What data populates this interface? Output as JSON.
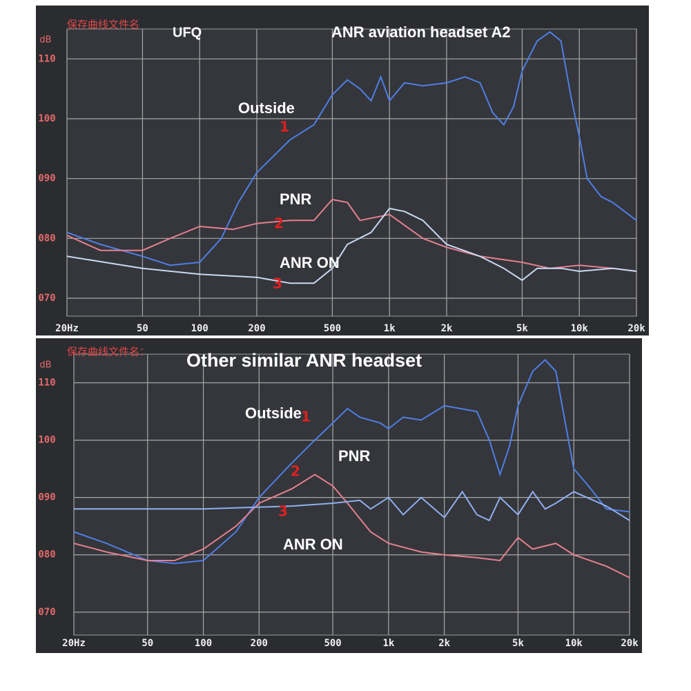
{
  "chart_data": [
    {
      "type": "line",
      "header": "保存曲线文件名",
      "file_name": "UFQ",
      "title": "ANR aviation headset A2",
      "y_label": "dB",
      "x_scale": "log",
      "grid": true,
      "xlim": [
        20,
        20000
      ],
      "xticks": [
        {
          "value": 20,
          "label": "20Hz"
        },
        50,
        100,
        200,
        500,
        {
          "value": 1000,
          "label": "1k"
        },
        {
          "value": 2000,
          "label": "2k"
        },
        {
          "value": 5000,
          "label": "5k"
        },
        {
          "value": 10000,
          "label": "10k"
        },
        {
          "value": 20000,
          "label": "20k"
        }
      ],
      "ylim": [
        67,
        115
      ],
      "yticks": [
        110,
        100,
        {
          "value": 90,
          "label": "090"
        },
        {
          "value": 80,
          "label": "080"
        },
        {
          "value": 70,
          "label": "070"
        }
      ],
      "series": [
        {
          "name": "Outside",
          "marker": "1",
          "color": "#4f7fe6",
          "x": [
            20,
            30,
            50,
            70,
            100,
            130,
            160,
            200,
            300,
            400,
            500,
            600,
            700,
            800,
            900,
            1000,
            1200,
            1500,
            2000,
            2500,
            3000,
            3500,
            4000,
            4500,
            5000,
            6000,
            7000,
            8000,
            9000,
            10000,
            11000,
            13000,
            15000,
            20000
          ],
          "values": [
            81,
            79,
            77,
            75.5,
            76,
            80,
            86,
            91,
            96.5,
            99,
            104,
            106.5,
            105,
            103,
            107,
            103,
            106,
            105.5,
            106,
            107,
            106,
            101,
            99,
            102,
            108,
            113,
            114.5,
            113,
            104,
            97,
            90,
            87,
            86,
            83
          ]
        },
        {
          "name": "PNR",
          "marker": "2",
          "color": "#e5808f",
          "x": [
            20,
            30,
            50,
            70,
            100,
            150,
            200,
            300,
            400,
            500,
            600,
            700,
            1000,
            1500,
            2000,
            3000,
            5000,
            7000,
            10000,
            15000,
            20000
          ],
          "values": [
            80.5,
            78,
            78,
            80,
            82,
            81.5,
            82.5,
            83,
            83,
            86.5,
            86,
            83,
            84,
            80,
            78.5,
            77,
            76,
            75,
            75.5,
            75,
            74.5
          ]
        },
        {
          "name": "ANR ON",
          "marker": "3",
          "color": "#c9d9f2",
          "x": [
            20,
            50,
            100,
            200,
            300,
            400,
            500,
            600,
            800,
            1000,
            1200,
            1500,
            2000,
            3000,
            4000,
            5000,
            6000,
            8000,
            10000,
            15000,
            20000
          ],
          "values": [
            77,
            75,
            74,
            73.5,
            72.5,
            72.5,
            75,
            79,
            81,
            85,
            84.5,
            83,
            79,
            77,
            75,
            73,
            75,
            75,
            74.5,
            75,
            74.5
          ]
        }
      ]
    },
    {
      "type": "line",
      "header": "保存曲线文件名：",
      "title": "Other similar ANR headset",
      "y_label": "dB",
      "x_scale": "log",
      "grid": true,
      "xlim": [
        20,
        20000
      ],
      "xticks": [
        {
          "value": 20,
          "label": "20Hz"
        },
        50,
        100,
        200,
        500,
        {
          "value": 1000,
          "label": "1k"
        },
        {
          "value": 2000,
          "label": "2k"
        },
        {
          "value": 5000,
          "label": "5k"
        },
        {
          "value": 10000,
          "label": "10k"
        },
        {
          "value": 20000,
          "label": "20k"
        }
      ],
      "ylim": [
        66,
        115
      ],
      "yticks": [
        110,
        100,
        {
          "value": 90,
          "label": "090"
        },
        {
          "value": 80,
          "label": "080"
        },
        {
          "value": 70,
          "label": "070"
        }
      ],
      "series": [
        {
          "name": "Outside",
          "marker": "1",
          "color": "#4f7fe6",
          "x": [
            20,
            30,
            50,
            70,
            100,
            150,
            200,
            300,
            400,
            500,
            600,
            700,
            900,
            1000,
            1200,
            1500,
            2000,
            3000,
            3500,
            4000,
            4500,
            5000,
            6000,
            7000,
            8000,
            9000,
            10000,
            12000,
            15000,
            20000
          ],
          "values": [
            84,
            82,
            79,
            78.5,
            79,
            84,
            90,
            96,
            100,
            103,
            105.5,
            104,
            103,
            102,
            104,
            103.5,
            106,
            105,
            100,
            94,
            99,
            106,
            112,
            114,
            112,
            103,
            95,
            92,
            88,
            87.5
          ]
        },
        {
          "name": "PNR",
          "marker": "2",
          "color": "#e5808f",
          "x": [
            20,
            30,
            50,
            70,
            100,
            150,
            200,
            300,
            400,
            500,
            600,
            800,
            1000,
            1500,
            2000,
            3000,
            4000,
            5000,
            6000,
            8000,
            10000,
            15000,
            20000
          ],
          "values": [
            82,
            80.5,
            79,
            79,
            81,
            85,
            89,
            91.5,
            94,
            92,
            89,
            84,
            82,
            80.5,
            80,
            79.5,
            79,
            83,
            81,
            82,
            80,
            78,
            76
          ]
        },
        {
          "name": "ANR ON",
          "marker": "3",
          "color": "#8fb0f0",
          "x": [
            20,
            100,
            300,
            500,
            700,
            800,
            1000,
            1200,
            1500,
            2000,
            2500,
            3000,
            3500,
            4000,
            5000,
            6000,
            7000,
            8000,
            10000,
            15000,
            20000
          ],
          "values": [
            88,
            88,
            88.5,
            89,
            89.5,
            88,
            90,
            87,
            90,
            86.5,
            91,
            87,
            86,
            90,
            87,
            91,
            88,
            89,
            91,
            88.5,
            86
          ]
        }
      ]
    }
  ]
}
